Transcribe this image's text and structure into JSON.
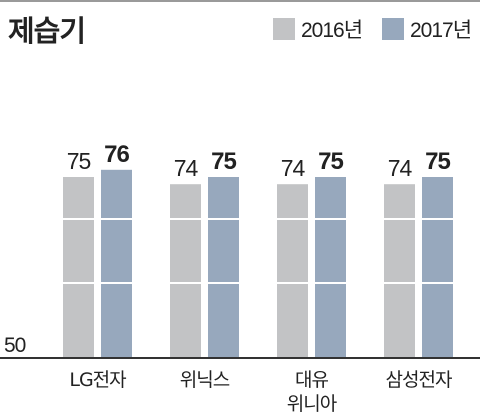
{
  "title": "제습기",
  "colors": {
    "s2016": "#c2c3c5",
    "s2017": "#97a8bd",
    "text": "#222222",
    "axis": "#333333"
  },
  "chart_data": {
    "type": "bar",
    "title": "제습기",
    "categories": [
      [
        "LG전자"
      ],
      [
        "위닉스"
      ],
      [
        "대유",
        "위니아"
      ],
      [
        "삼성전자"
      ]
    ],
    "series": [
      {
        "name": "2016년",
        "values": [
          75,
          74,
          74,
          74
        ]
      },
      {
        "name": "2017년",
        "values": [
          76,
          75,
          75,
          75
        ]
      }
    ],
    "yaxis_label": "50",
    "ylim": [
      50,
      77
    ],
    "legend": "top-right",
    "grid": false
  }
}
